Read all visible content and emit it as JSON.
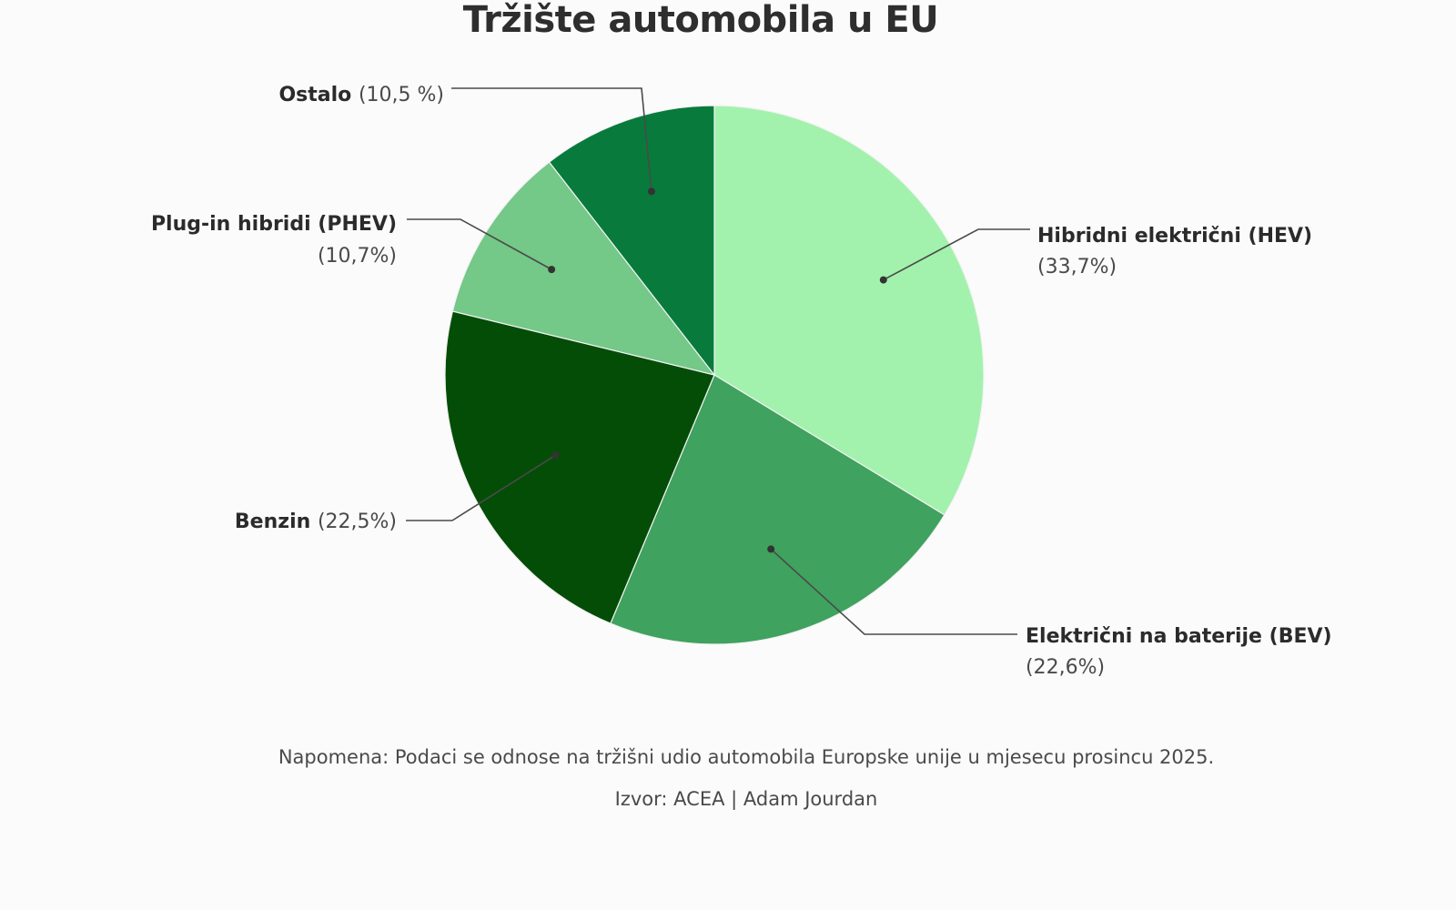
{
  "chart_data": {
    "type": "pie",
    "title": "Tržište automobila u EU",
    "slices": [
      {
        "name": "Hibridni električni (HEV)",
        "value_label": "(33,7%)",
        "value": 33.7,
        "color": "#a2f2ad"
      },
      {
        "name": "Električni na baterije (BEV)",
        "value_label": "(22,6%)",
        "value": 22.6,
        "color": "#3fa25e"
      },
      {
        "name": "Benzin",
        "value_label": "(22,5%)",
        "value": 22.5,
        "color": "#044d07"
      },
      {
        "name": "Plug-in hibridi (PHEV)",
        "value_label": "(10,7%)",
        "value": 10.7,
        "color": "#74c888"
      },
      {
        "name": "Ostalo",
        "value_label": "(10,5 %)",
        "value": 10.5,
        "color": "#087a3c"
      }
    ],
    "start_angle": "12 o'clock",
    "direction": "clockwise"
  },
  "footer": {
    "note": "Napomena: Podaci se odnose na tržišni udio automobila Europske unije u mjesecu prosincu 2025.",
    "source": "Izvor: ACEA | Adam Jourdan"
  }
}
